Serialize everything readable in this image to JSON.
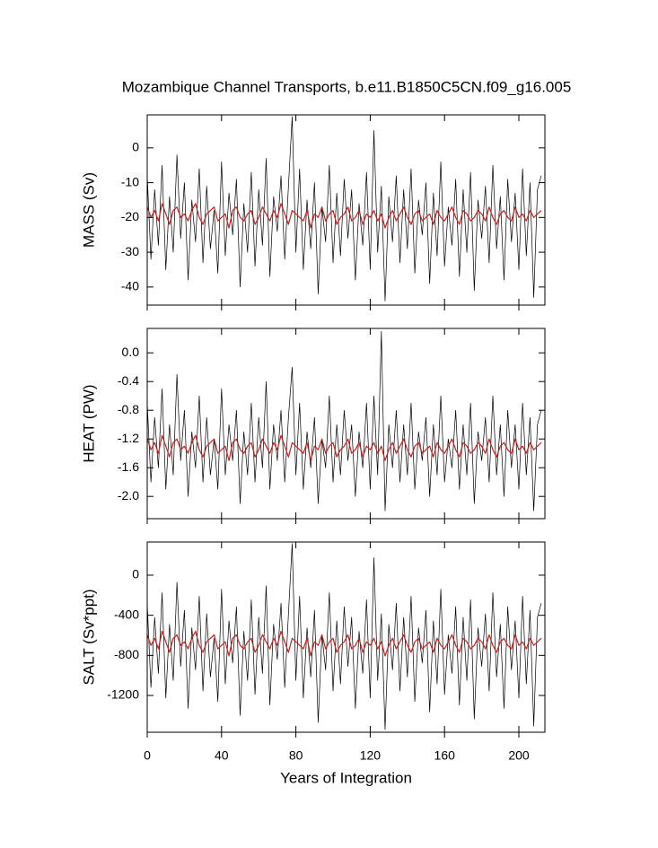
{
  "chart_data": [
    {
      "type": "line",
      "title": "Mozambique Channel Transports, b.e11.B1850C5CN.f09_g16.005",
      "ylabel": "MASS (Sv)",
      "x": [
        0,
        2,
        4,
        6,
        8,
        10,
        12,
        14,
        16,
        18,
        20,
        22,
        24,
        26,
        28,
        30,
        32,
        34,
        36,
        38,
        40,
        42,
        44,
        46,
        48,
        50,
        52,
        54,
        56,
        58,
        60,
        62,
        64,
        66,
        68,
        70,
        72,
        74,
        76,
        78,
        80,
        82,
        84,
        86,
        88,
        90,
        92,
        94,
        96,
        98,
        100,
        102,
        104,
        106,
        108,
        110,
        112,
        114,
        116,
        118,
        120,
        122,
        124,
        126,
        128,
        130,
        132,
        134,
        136,
        138,
        140,
        142,
        144,
        146,
        148,
        150,
        152,
        154,
        156,
        158,
        160,
        162,
        164,
        166,
        168,
        170,
        172,
        174,
        176,
        178,
        180,
        182,
        184,
        186,
        188,
        190,
        192,
        194,
        196,
        198,
        200,
        202,
        204,
        206,
        208,
        210,
        212
      ],
      "xlim": [
        0,
        214
      ],
      "xticks": [
        0,
        40,
        80,
        120,
        160,
        200
      ],
      "ylim": [
        -45.2,
        9.5
      ],
      "yticks": [
        0,
        -10,
        -20,
        -30,
        -40
      ],
      "series": [
        {
          "color": "#000000",
          "values": [
            -8,
            -32,
            -12,
            -28,
            -5,
            -35,
            -14,
            -30,
            -2,
            -26,
            -10,
            -38,
            -15,
            -27,
            -6,
            -33,
            -11,
            -29,
            -18,
            -36,
            -4,
            -31,
            -13,
            -25,
            -9,
            -40,
            -16,
            -30,
            -7,
            -34,
            -12,
            -28,
            -3,
            -37,
            -14,
            -24,
            -8,
            -32,
            -11,
            9,
            -30,
            -6,
            -35,
            -15,
            -29,
            -10,
            -42,
            -17,
            -27,
            -5,
            -33,
            -13,
            -31,
            -9,
            -26,
            -12,
            -38,
            -16,
            -28,
            -7,
            -35,
            5,
            -30,
            -11,
            -44,
            -14,
            -27,
            -8,
            -33,
            -12,
            -29,
            -6,
            -36,
            -15,
            -25,
            -10,
            -39,
            -13,
            -31,
            -4,
            -34,
            -17,
            -28,
            -9,
            -37,
            -12,
            -30,
            -7,
            -41,
            -15,
            -26,
            -11,
            -33,
            -5,
            -29,
            -14,
            -38,
            -9,
            -27,
            -13,
            -35,
            -6,
            -31,
            -10,
            -43,
            -12,
            -8
          ]
        },
        {
          "color": "#cc2020",
          "values": [
            -17,
            -20,
            -18,
            -21,
            -16,
            -19,
            -22,
            -18,
            -17,
            -20,
            -19,
            -21,
            -18,
            -16,
            -20,
            -22,
            -19,
            -18,
            -17,
            -21,
            -20,
            -19,
            -23,
            -18,
            -17,
            -20,
            -21,
            -19,
            -18,
            -22,
            -20,
            -17,
            -19,
            -21,
            -18,
            -20,
            -16,
            -19,
            -22,
            -18,
            -19,
            -20,
            -21,
            -18,
            -23,
            -19,
            -20,
            -17,
            -21,
            -19,
            -18,
            -22,
            -20,
            -19,
            -17,
            -21,
            -20,
            -18,
            -22,
            -19,
            -20,
            -18,
            -21,
            -19,
            -23,
            -20,
            -18,
            -21,
            -19,
            -17,
            -20,
            -22,
            -19,
            -18,
            -21,
            -20,
            -19,
            -22,
            -18,
            -20,
            -21,
            -19,
            -17,
            -20,
            -22,
            -18,
            -19,
            -21,
            -20,
            -18,
            -19,
            -21,
            -17,
            -20,
            -22,
            -19,
            -18,
            -20,
            -21,
            -17,
            -20,
            -19,
            -21,
            -18,
            -20,
            -19,
            -18
          ]
        }
      ]
    },
    {
      "type": "line",
      "ylabel": "HEAT (PW)",
      "x": [
        0,
        2,
        4,
        6,
        8,
        10,
        12,
        14,
        16,
        18,
        20,
        22,
        24,
        26,
        28,
        30,
        32,
        34,
        36,
        38,
        40,
        42,
        44,
        46,
        48,
        50,
        52,
        54,
        56,
        58,
        60,
        62,
        64,
        66,
        68,
        70,
        72,
        74,
        76,
        78,
        80,
        82,
        84,
        86,
        88,
        90,
        92,
        94,
        96,
        98,
        100,
        102,
        104,
        106,
        108,
        110,
        112,
        114,
        116,
        118,
        120,
        122,
        124,
        126,
        128,
        130,
        132,
        134,
        136,
        138,
        140,
        142,
        144,
        146,
        148,
        150,
        152,
        154,
        156,
        158,
        160,
        162,
        164,
        166,
        168,
        170,
        172,
        174,
        176,
        178,
        180,
        182,
        184,
        186,
        188,
        190,
        192,
        194,
        196,
        198,
        200,
        202,
        204,
        206,
        208,
        210,
        212
      ],
      "xlim": [
        0,
        214
      ],
      "xticks": [
        0,
        40,
        80,
        120,
        160,
        200
      ],
      "ylim": [
        -2.31,
        0.34
      ],
      "yticks": [
        {
          "value": 0,
          "label": "0.0"
        },
        -0.4,
        -0.8,
        -1.2,
        -1.6,
        {
          "value": -2,
          "label": "-2.0"
        }
      ],
      "series": [
        {
          "color": "#000000",
          "values": [
            -0.7,
            -1.8,
            -0.9,
            -1.6,
            -0.5,
            -1.9,
            -1.0,
            -1.7,
            -0.3,
            -1.5,
            -0.8,
            -2.0,
            -1.1,
            -1.6,
            -0.6,
            -1.8,
            -0.9,
            -1.7,
            -1.2,
            -1.9,
            -0.5,
            -1.7,
            -1.0,
            -1.5,
            -0.8,
            -2.1,
            -1.1,
            -1.7,
            -0.7,
            -1.8,
            -0.9,
            -1.6,
            -0.4,
            -1.9,
            -1.0,
            -1.5,
            -0.8,
            -1.8,
            -0.9,
            -0.2,
            -1.7,
            -0.7,
            -1.9,
            -1.1,
            -1.6,
            -0.9,
            -2.1,
            -1.2,
            -1.6,
            -0.6,
            -1.8,
            -1.0,
            -1.7,
            -0.8,
            -1.5,
            -1.0,
            -2.0,
            -1.1,
            -1.6,
            -0.7,
            -1.9,
            -0.6,
            -1.7,
            0.3,
            -2.2,
            -1.0,
            -1.6,
            -0.8,
            -1.8,
            -1.0,
            -1.7,
            -0.7,
            -1.9,
            -1.1,
            -1.5,
            -0.9,
            -2.0,
            -1.0,
            -1.7,
            -0.6,
            -1.8,
            -1.2,
            -1.6,
            -0.8,
            -1.9,
            -1.0,
            -1.7,
            -0.7,
            -2.1,
            -1.1,
            -1.5,
            -0.9,
            -1.8,
            -0.6,
            -1.7,
            -1.0,
            -2.0,
            -0.8,
            -1.6,
            -1.0,
            -1.9,
            -0.7,
            -1.7,
            -0.9,
            -2.2,
            -1.0,
            -0.8
          ]
        },
        {
          "color": "#cc2020",
          "values": [
            -1.2,
            -1.35,
            -1.25,
            -1.4,
            -1.15,
            -1.3,
            -1.45,
            -1.25,
            -1.2,
            -1.35,
            -1.3,
            -1.4,
            -1.25,
            -1.15,
            -1.35,
            -1.45,
            -1.3,
            -1.25,
            -1.2,
            -1.4,
            -1.35,
            -1.3,
            -1.5,
            -1.25,
            -1.2,
            -1.35,
            -1.4,
            -1.3,
            -1.25,
            -1.45,
            -1.35,
            -1.2,
            -1.3,
            -1.4,
            -1.25,
            -1.35,
            -1.15,
            -1.3,
            -1.45,
            -1.25,
            -1.3,
            -1.35,
            -1.4,
            -1.25,
            -1.5,
            -1.3,
            -1.35,
            -1.2,
            -1.4,
            -1.3,
            -1.25,
            -1.45,
            -1.35,
            -1.3,
            -1.2,
            -1.4,
            -1.35,
            -1.25,
            -1.45,
            -1.3,
            -1.35,
            -1.25,
            -1.4,
            -1.3,
            -1.5,
            -1.35,
            -1.25,
            -1.4,
            -1.3,
            -1.2,
            -1.35,
            -1.45,
            -1.3,
            -1.25,
            -1.4,
            -1.35,
            -1.3,
            -1.45,
            -1.25,
            -1.35,
            -1.4,
            -1.3,
            -1.2,
            -1.35,
            -1.45,
            -1.25,
            -1.3,
            -1.4,
            -1.35,
            -1.25,
            -1.3,
            -1.4,
            -1.2,
            -1.35,
            -1.45,
            -1.3,
            -1.25,
            -1.35,
            -1.4,
            -1.2,
            -1.35,
            -1.3,
            -1.4,
            -1.25,
            -1.35,
            -1.3,
            -1.25
          ]
        }
      ]
    },
    {
      "type": "line",
      "ylabel": "SALT (Sv*ppt)",
      "xlabel": "Years of Integration",
      "x": [
        0,
        2,
        4,
        6,
        8,
        10,
        12,
        14,
        16,
        18,
        20,
        22,
        24,
        26,
        28,
        30,
        32,
        34,
        36,
        38,
        40,
        42,
        44,
        46,
        48,
        50,
        52,
        54,
        56,
        58,
        60,
        62,
        64,
        66,
        68,
        70,
        72,
        74,
        76,
        78,
        80,
        82,
        84,
        86,
        88,
        90,
        92,
        94,
        96,
        98,
        100,
        102,
        104,
        106,
        108,
        110,
        112,
        114,
        116,
        118,
        120,
        122,
        124,
        126,
        128,
        130,
        132,
        134,
        136,
        138,
        140,
        142,
        144,
        146,
        148,
        150,
        152,
        154,
        156,
        158,
        160,
        162,
        164,
        166,
        168,
        170,
        172,
        174,
        176,
        178,
        180,
        182,
        184,
        186,
        188,
        190,
        192,
        194,
        196,
        198,
        200,
        202,
        204,
        206,
        208,
        210,
        212
      ],
      "xlim": [
        0,
        214
      ],
      "xticks": [
        0,
        40,
        80,
        120,
        160,
        200
      ],
      "ylim": [
        -1567,
        331
      ],
      "yticks": [
        0,
        -400,
        -800,
        -1200
      ],
      "series": [
        {
          "color": "#000000",
          "values": [
            -280,
            -1120,
            -420,
            -980,
            -175,
            -1225,
            -490,
            -1050,
            -70,
            -910,
            -350,
            -1330,
            -525,
            -945,
            -210,
            -1155,
            -385,
            -1015,
            -630,
            -1260,
            -140,
            -1085,
            -455,
            -875,
            -315,
            -1400,
            -560,
            -1050,
            -245,
            -1190,
            -420,
            -980,
            -105,
            -1295,
            -490,
            -840,
            -280,
            -1120,
            -385,
            315,
            -1050,
            -210,
            -1225,
            -525,
            -1015,
            -350,
            -1470,
            -595,
            -945,
            -175,
            -1155,
            -455,
            -1085,
            -315,
            -910,
            -420,
            -1330,
            -560,
            -980,
            -245,
            -1225,
            175,
            -1050,
            -385,
            -1540,
            -490,
            -945,
            -280,
            -1155,
            -420,
            -1015,
            -210,
            -1260,
            -525,
            -875,
            -350,
            -1365,
            -455,
            -1085,
            -140,
            -1190,
            -595,
            -980,
            -315,
            -1295,
            -420,
            -1050,
            -245,
            -1435,
            -525,
            -910,
            -385,
            -1155,
            -175,
            -1015,
            -490,
            -1330,
            -315,
            -945,
            -455,
            -1225,
            -210,
            -1085,
            -350,
            -1505,
            -420,
            -280
          ]
        },
        {
          "color": "#cc2020",
          "values": [
            -595,
            -700,
            -630,
            -735,
            -560,
            -665,
            -770,
            -630,
            -595,
            -700,
            -665,
            -735,
            -630,
            -560,
            -700,
            -770,
            -665,
            -630,
            -595,
            -735,
            -700,
            -665,
            -805,
            -630,
            -595,
            -700,
            -735,
            -665,
            -630,
            -770,
            -700,
            -595,
            -665,
            -735,
            -630,
            -700,
            -560,
            -665,
            -770,
            -630,
            -665,
            -700,
            -735,
            -630,
            -805,
            -665,
            -700,
            -595,
            -735,
            -665,
            -630,
            -770,
            -700,
            -665,
            -595,
            -735,
            -700,
            -630,
            -770,
            -665,
            -700,
            -630,
            -735,
            -665,
            -805,
            -700,
            -630,
            -735,
            -665,
            -595,
            -700,
            -770,
            -665,
            -630,
            -735,
            -700,
            -665,
            -770,
            -630,
            -700,
            -735,
            -665,
            -595,
            -700,
            -770,
            -630,
            -665,
            -735,
            -700,
            -630,
            -665,
            -735,
            -595,
            -700,
            -770,
            -665,
            -630,
            -700,
            -735,
            -595,
            -700,
            -665,
            -735,
            -630,
            -700,
            -665,
            -630
          ]
        }
      ]
    }
  ]
}
